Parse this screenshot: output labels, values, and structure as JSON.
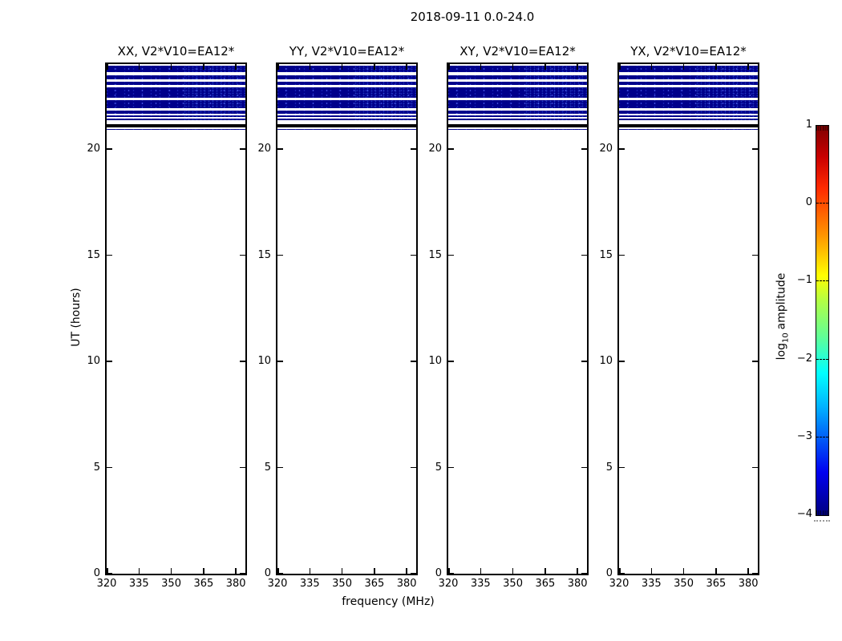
{
  "figure": {
    "title": "2018-09-11 0.0-24.0",
    "xlabel": "frequency (MHz)",
    "ylabel": "UT (hours)",
    "panel_titles": [
      "XX, V2*V10=EA12*",
      "YY, V2*V10=EA12*",
      "XY, V2*V10=EA12*",
      "YX, V2*V10=EA12*"
    ],
    "x_tick_labels": [
      "320",
      "335",
      "350",
      "365",
      "380"
    ],
    "y_tick_labels": [
      "0",
      "5",
      "10",
      "15",
      "20"
    ],
    "colorbar": {
      "tick_labels": [
        "1",
        "0",
        "−1",
        "−2",
        "−3",
        "−4"
      ],
      "label_prefix": "log",
      "label_sub": "10",
      "label_suffix": "amplitude"
    }
  },
  "chart_data": {
    "type": "heatmap",
    "title": "2018-09-11 0.0-24.0",
    "xlabel": "frequency (MHz)",
    "ylabel": "UT (hours)",
    "panels": [
      "XX, V2*V10=EA12*",
      "YY, V2*V10=EA12*",
      "XY, V2*V10=EA12*",
      "YX, V2*V10=EA12*"
    ],
    "x_range_mhz": [
      320,
      384.4
    ],
    "y_range_hours": [
      0,
      24
    ],
    "x_ticks_mhz": [
      320,
      335,
      350,
      365,
      380
    ],
    "y_ticks_hours": [
      0,
      5,
      10,
      15,
      20
    ],
    "colorbar": {
      "label": "log10 amplitude",
      "colormap": "jet",
      "range": [
        -4,
        1
      ],
      "ticks": [
        1,
        0,
        -1,
        -2,
        -3,
        -4
      ]
    },
    "stripes_note": "horizontal bands spanning full frequency range, identical in all four panels",
    "stripes": [
      {
        "ut": [
          23.62,
          23.94
        ],
        "color": "#00008b"
      },
      {
        "ut": [
          23.3,
          23.49
        ],
        "color": "#00008b"
      },
      {
        "ut": [
          23.03,
          23.17
        ],
        "color": "#00008b"
      },
      {
        "ut": [
          22.43,
          22.9
        ],
        "color": "#00008b"
      },
      {
        "ut": [
          21.94,
          22.29
        ],
        "color": "#00008b"
      },
      {
        "ut": [
          21.64,
          21.8
        ],
        "color": "#00008b"
      },
      {
        "ut": [
          21.52,
          21.58
        ],
        "color": "#00008b"
      },
      {
        "ut": [
          21.35,
          21.43
        ],
        "color": "#00008b"
      },
      {
        "ut": [
          21.03,
          21.18
        ],
        "color": "#000000"
      },
      {
        "ut": [
          20.9,
          20.96
        ],
        "color": "#00008b"
      }
    ],
    "background_value": "blank (no data) below ~20.9 UT",
    "accent_colors": {
      "data_band": "#00008b",
      "flagged_band": "#000000"
    }
  }
}
